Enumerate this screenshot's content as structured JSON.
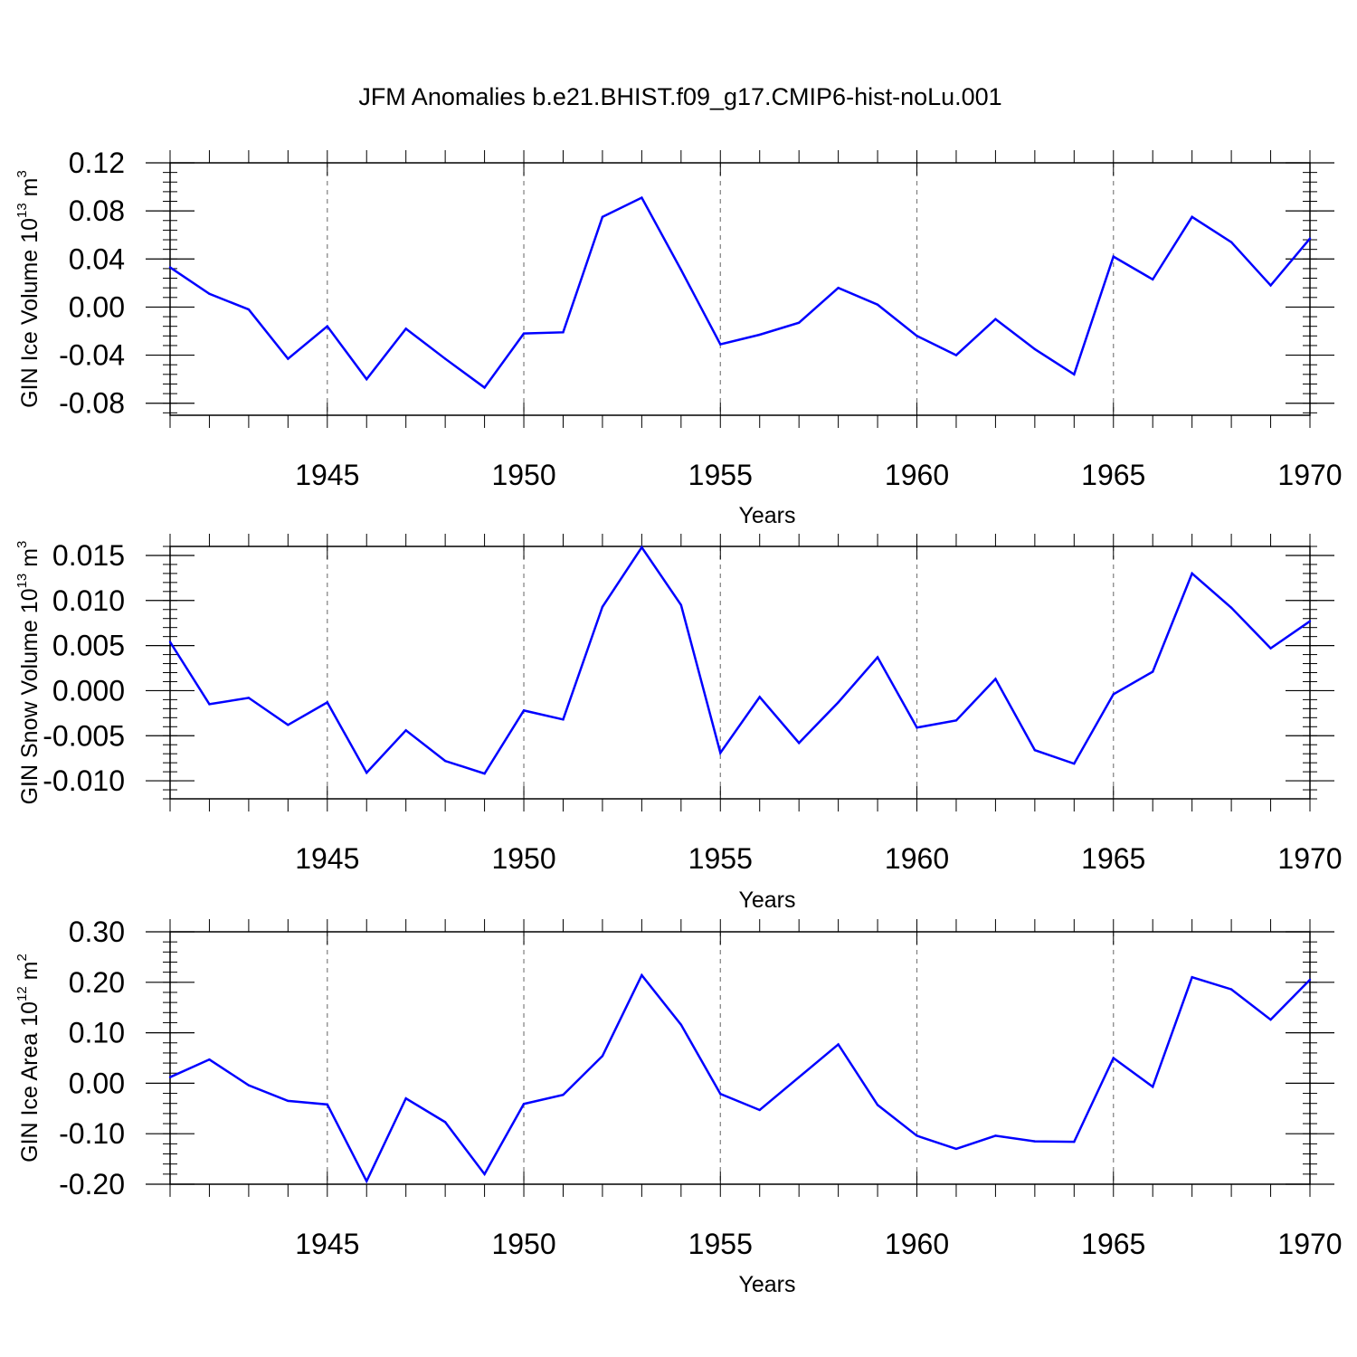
{
  "chart_data": {
    "type": "line",
    "title": "JFM Anomalies b.e21.BHIST.f09_g17.CMIP6-hist-noLu.001",
    "line_color": "#0000ff",
    "years": [
      1941,
      1942,
      1943,
      1944,
      1945,
      1946,
      1947,
      1948,
      1949,
      1950,
      1951,
      1952,
      1953,
      1954,
      1955,
      1956,
      1957,
      1958,
      1959,
      1960,
      1961,
      1962,
      1963,
      1964,
      1965,
      1966,
      1967,
      1968,
      1969,
      1970
    ],
    "panels": [
      {
        "id": "ice-volume",
        "ylabel": "GIN Ice Volume 10",
        "ylabel_exp": "13",
        "ylabel_unit": " m",
        "ylabel_unit_exp": "3",
        "xlabel": "Years",
        "ylim": [
          -0.09,
          0.12
        ],
        "xlim": [
          1941,
          1970
        ],
        "yticks": [
          -0.08,
          -0.04,
          0.0,
          0.04,
          0.08,
          0.12
        ],
        "ytick_labels": [
          "-0.08",
          "-0.04",
          "0.00",
          "0.04",
          "0.08",
          "0.12"
        ],
        "yminor_step": 0.008,
        "xticks": [
          1945,
          1950,
          1955,
          1960,
          1965,
          1970
        ],
        "xtick_labels": [
          "1945",
          "1950",
          "1955",
          "1960",
          "1965",
          "1970"
        ],
        "values": [
          0.033,
          0.011,
          -0.002,
          -0.043,
          -0.016,
          -0.06,
          -0.018,
          -0.043,
          -0.067,
          -0.022,
          -0.021,
          0.075,
          0.091,
          0.031,
          -0.031,
          -0.023,
          -0.013,
          0.016,
          0.002,
          -0.024,
          -0.04,
          -0.01,
          -0.035,
          -0.056,
          0.042,
          0.023,
          0.075,
          0.054,
          0.018,
          0.057
        ]
      },
      {
        "id": "snow-volume",
        "ylabel": "GIN Snow Volume 10",
        "ylabel_exp": "13",
        "ylabel_unit": " m",
        "ylabel_unit_exp": "3",
        "xlabel": "Years",
        "ylim": [
          -0.012,
          0.016
        ],
        "xlim": [
          1941,
          1970
        ],
        "yticks": [
          -0.01,
          -0.005,
          0.0,
          0.005,
          0.01,
          0.015
        ],
        "ytick_labels": [
          "-0.010",
          "-0.005",
          "0.000",
          "0.005",
          "0.010",
          "0.015"
        ],
        "yminor_step": 0.001,
        "xticks": [
          1945,
          1950,
          1955,
          1960,
          1965,
          1970
        ],
        "xtick_labels": [
          "1945",
          "1950",
          "1955",
          "1960",
          "1965",
          "1970"
        ],
        "values": [
          0.0054,
          -0.0015,
          -0.0008,
          -0.0038,
          -0.0013,
          -0.0091,
          -0.0044,
          -0.0078,
          -0.0092,
          -0.0022,
          -0.0032,
          0.0093,
          0.0159,
          0.0095,
          -0.0069,
          -0.0007,
          -0.0058,
          -0.0013,
          0.0037,
          -0.0041,
          -0.0033,
          0.0013,
          -0.0066,
          -0.0081,
          -0.0004,
          0.0021,
          0.013,
          0.0092,
          0.0047,
          0.0077
        ]
      },
      {
        "id": "ice-area",
        "ylabel": "GIN Ice Area 10",
        "ylabel_exp": "12",
        "ylabel_unit": " m",
        "ylabel_unit_exp": "2",
        "xlabel": "Years",
        "ylim": [
          -0.2,
          0.3
        ],
        "xlim": [
          1941,
          1970
        ],
        "yticks": [
          -0.2,
          -0.1,
          0.0,
          0.1,
          0.2,
          0.3
        ],
        "ytick_labels": [
          "-0.20",
          "-0.10",
          "0.00",
          "0.10",
          "0.20",
          "0.30"
        ],
        "yminor_step": 0.02,
        "xticks": [
          1945,
          1950,
          1955,
          1960,
          1965,
          1970
        ],
        "xtick_labels": [
          "1945",
          "1950",
          "1955",
          "1960",
          "1965",
          "1970"
        ],
        "values": [
          0.012,
          0.047,
          -0.004,
          -0.035,
          -0.042,
          -0.194,
          -0.03,
          -0.077,
          -0.18,
          -0.041,
          -0.023,
          0.054,
          0.214,
          0.116,
          -0.021,
          -0.053,
          0.012,
          0.077,
          -0.043,
          -0.104,
          -0.13,
          -0.104,
          -0.115,
          -0.116,
          0.05,
          -0.007,
          0.21,
          0.186,
          0.126,
          0.205
        ]
      }
    ]
  }
}
